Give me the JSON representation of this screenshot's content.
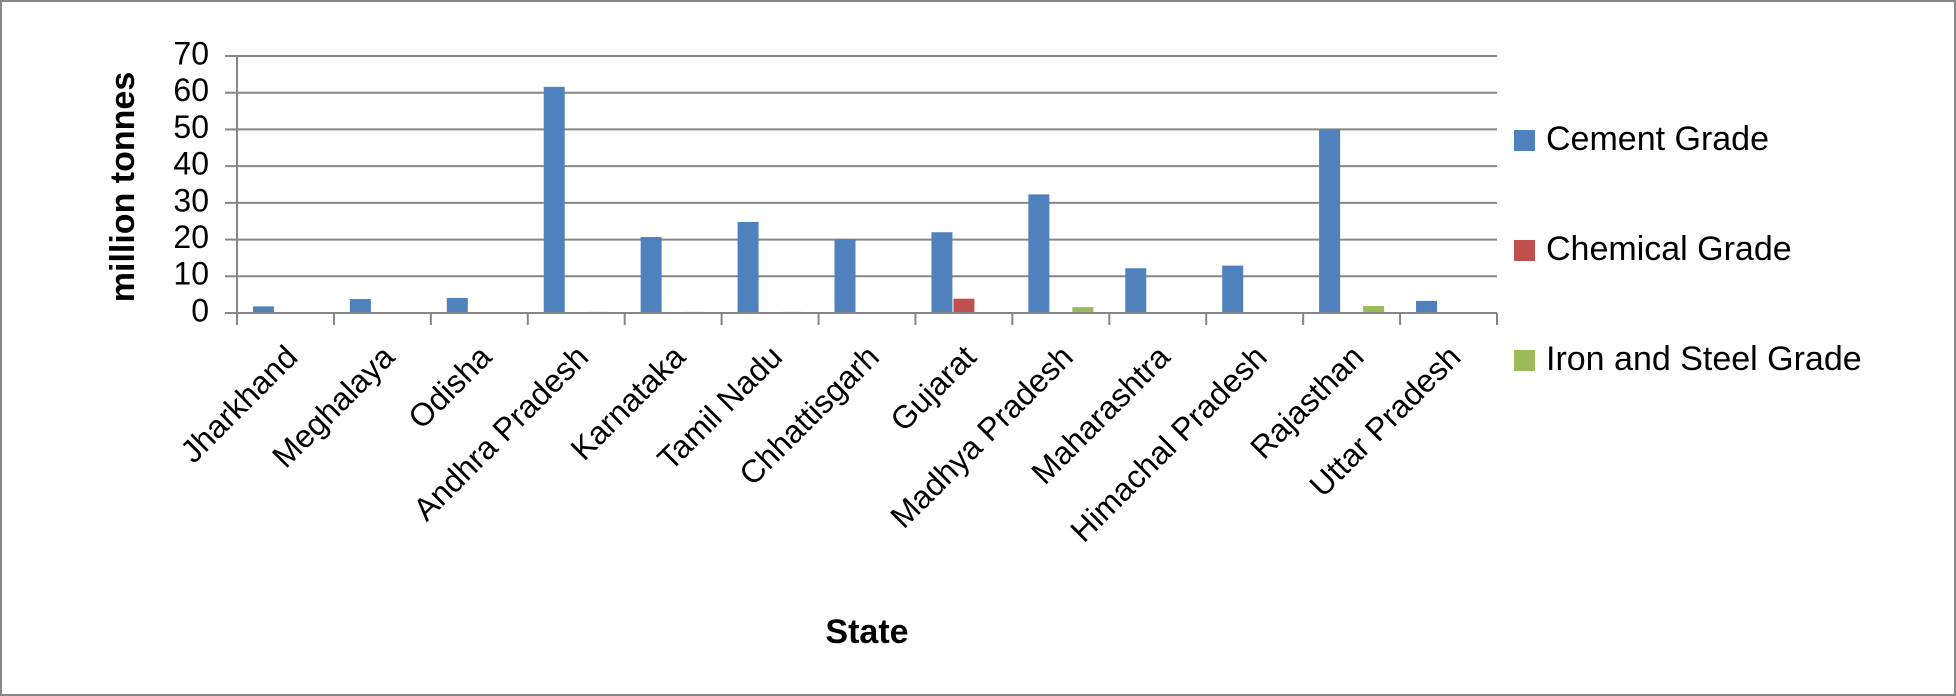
{
  "chart_data": {
    "type": "bar",
    "x_label": "State",
    "y_label": "million tonnes",
    "categories": [
      "Jharkhand",
      "Meghalaya",
      "Odisha",
      "Andhra Pradesh",
      "Karnataka",
      "Tamil Nadu",
      "Chhattisgarh",
      "Gujarat",
      "Madhya Pradesh",
      "Maharashtra",
      "Himachal Pradesh",
      "Rajasthan",
      "Uttar Pradesh"
    ],
    "series": [
      {
        "name": "Cement Grade",
        "color": "#4f81bd",
        "values": [
          1.8,
          3.8,
          4.1,
          61.6,
          20.7,
          24.8,
          20.1,
          22,
          32.3,
          12.2,
          12.9,
          50,
          3.3
        ]
      },
      {
        "name": "Chemical Grade",
        "color": "#c0504d",
        "values": [
          0,
          0,
          0,
          0,
          0,
          0,
          0,
          3.9,
          0,
          0,
          0,
          0,
          0
        ]
      },
      {
        "name": "Iron and Steel Grade",
        "color": "#9bbb59",
        "values": [
          0,
          0,
          0,
          0.3,
          0.3,
          0.3,
          0,
          0,
          1.6,
          0,
          0,
          1.9,
          0
        ]
      }
    ],
    "ylim": [
      0,
      70
    ],
    "yticks": [
      0,
      10,
      20,
      30,
      40,
      50,
      60,
      70
    ],
    "grid": true,
    "legend": "right"
  }
}
